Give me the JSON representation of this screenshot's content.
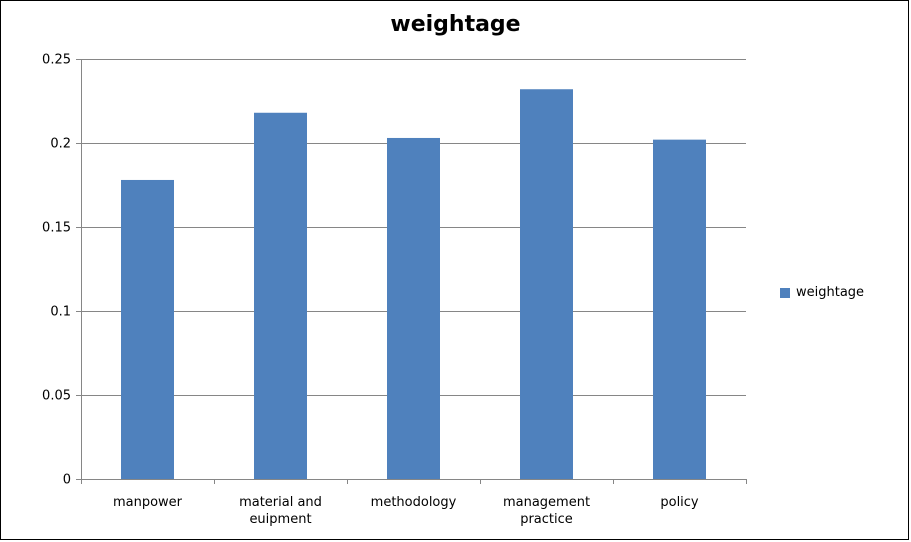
{
  "chart_data": {
    "type": "bar",
    "title": "weightage",
    "categories": [
      "manpower",
      "material and euipment",
      "methodology",
      "management practice",
      "policy"
    ],
    "category_lines": [
      [
        "manpower"
      ],
      [
        "material and",
        "euipment"
      ],
      [
        "methodology"
      ],
      [
        "management",
        "practice"
      ],
      [
        "policy"
      ]
    ],
    "series": [
      {
        "name": "weightage",
        "values": [
          0.178,
          0.218,
          0.203,
          0.232,
          0.202
        ],
        "color": "#4F81BD"
      }
    ],
    "ylim": [
      0,
      0.25
    ],
    "yticks": [
      "0",
      "0.05",
      "0.1",
      "0.15",
      "0.2",
      "0.25"
    ],
    "ytick_values": [
      0,
      0.05,
      0.1,
      0.15,
      0.2,
      0.25
    ],
    "grid": true,
    "legend_position": "right"
  }
}
